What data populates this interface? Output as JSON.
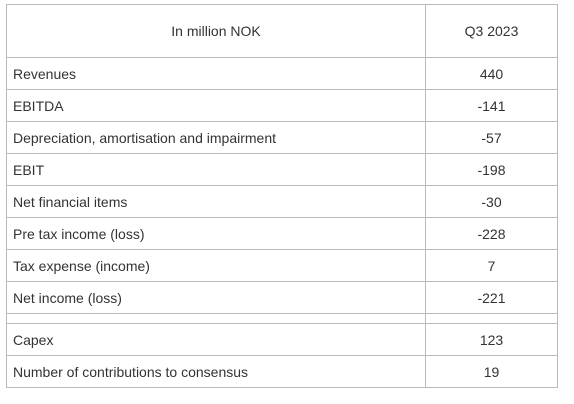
{
  "table": {
    "header": {
      "label": "In million NOK",
      "period": "Q3 2023"
    },
    "rows": [
      {
        "label": "Revenues",
        "value": "440"
      },
      {
        "label": "EBITDA",
        "value": "-141"
      },
      {
        "label": "Depreciation, amortisation and impairment",
        "value": "-57"
      },
      {
        "label": "EBIT",
        "value": "-198"
      },
      {
        "label": "Net financial items",
        "value": "-30"
      },
      {
        "label": "Pre tax income (loss)",
        "value": "-228"
      },
      {
        "label": "Tax expense (income)",
        "value": "7"
      },
      {
        "label": "Net income (loss)",
        "value": "-221"
      }
    ],
    "extra_rows": [
      {
        "label": "Capex",
        "value": "123"
      },
      {
        "label": "Number of contributions to consensus",
        "value": "19"
      }
    ]
  }
}
